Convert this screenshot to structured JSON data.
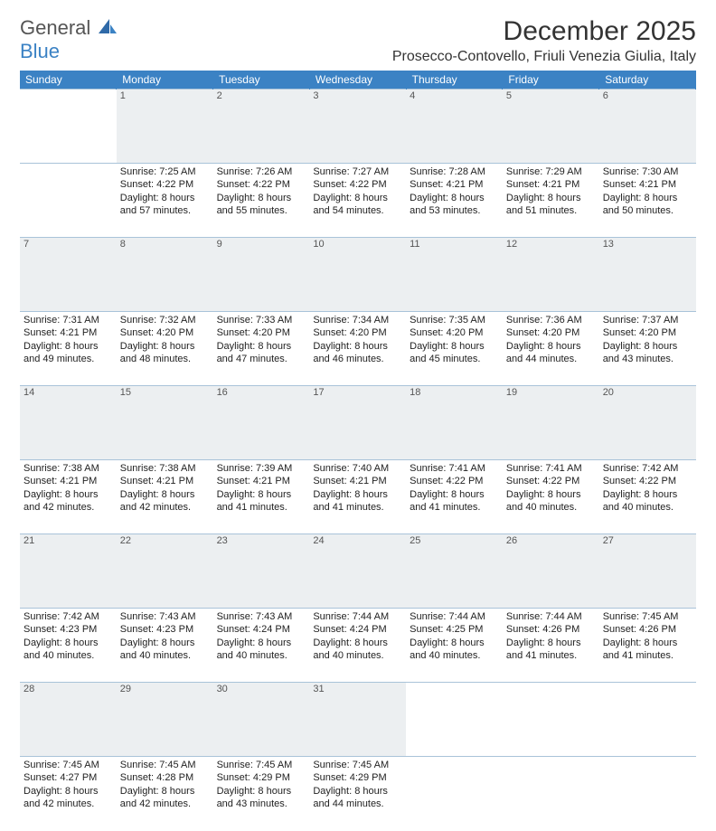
{
  "logo": {
    "line1": "General",
    "line2": "Blue"
  },
  "title": "December 2025",
  "location": "Prosecco-Contovello, Friuli Venezia Giulia, Italy",
  "colors": {
    "header_bg": "#3b82c4",
    "daynum_bg": "#eceff1",
    "rule": "#a9c3d9"
  },
  "weekdays": [
    "Sunday",
    "Monday",
    "Tuesday",
    "Wednesday",
    "Thursday",
    "Friday",
    "Saturday"
  ],
  "weeks": [
    {
      "nums": [
        "",
        "1",
        "2",
        "3",
        "4",
        "5",
        "6"
      ],
      "cells": [
        null,
        {
          "sunrise": "Sunrise: 7:25 AM",
          "sunset": "Sunset: 4:22 PM",
          "day1": "Daylight: 8 hours",
          "day2": "and 57 minutes."
        },
        {
          "sunrise": "Sunrise: 7:26 AM",
          "sunset": "Sunset: 4:22 PM",
          "day1": "Daylight: 8 hours",
          "day2": "and 55 minutes."
        },
        {
          "sunrise": "Sunrise: 7:27 AM",
          "sunset": "Sunset: 4:22 PM",
          "day1": "Daylight: 8 hours",
          "day2": "and 54 minutes."
        },
        {
          "sunrise": "Sunrise: 7:28 AM",
          "sunset": "Sunset: 4:21 PM",
          "day1": "Daylight: 8 hours",
          "day2": "and 53 minutes."
        },
        {
          "sunrise": "Sunrise: 7:29 AM",
          "sunset": "Sunset: 4:21 PM",
          "day1": "Daylight: 8 hours",
          "day2": "and 51 minutes."
        },
        {
          "sunrise": "Sunrise: 7:30 AM",
          "sunset": "Sunset: 4:21 PM",
          "day1": "Daylight: 8 hours",
          "day2": "and 50 minutes."
        }
      ]
    },
    {
      "nums": [
        "7",
        "8",
        "9",
        "10",
        "11",
        "12",
        "13"
      ],
      "cells": [
        {
          "sunrise": "Sunrise: 7:31 AM",
          "sunset": "Sunset: 4:21 PM",
          "day1": "Daylight: 8 hours",
          "day2": "and 49 minutes."
        },
        {
          "sunrise": "Sunrise: 7:32 AM",
          "sunset": "Sunset: 4:20 PM",
          "day1": "Daylight: 8 hours",
          "day2": "and 48 minutes."
        },
        {
          "sunrise": "Sunrise: 7:33 AM",
          "sunset": "Sunset: 4:20 PM",
          "day1": "Daylight: 8 hours",
          "day2": "and 47 minutes."
        },
        {
          "sunrise": "Sunrise: 7:34 AM",
          "sunset": "Sunset: 4:20 PM",
          "day1": "Daylight: 8 hours",
          "day2": "and 46 minutes."
        },
        {
          "sunrise": "Sunrise: 7:35 AM",
          "sunset": "Sunset: 4:20 PM",
          "day1": "Daylight: 8 hours",
          "day2": "and 45 minutes."
        },
        {
          "sunrise": "Sunrise: 7:36 AM",
          "sunset": "Sunset: 4:20 PM",
          "day1": "Daylight: 8 hours",
          "day2": "and 44 minutes."
        },
        {
          "sunrise": "Sunrise: 7:37 AM",
          "sunset": "Sunset: 4:20 PM",
          "day1": "Daylight: 8 hours",
          "day2": "and 43 minutes."
        }
      ]
    },
    {
      "nums": [
        "14",
        "15",
        "16",
        "17",
        "18",
        "19",
        "20"
      ],
      "cells": [
        {
          "sunrise": "Sunrise: 7:38 AM",
          "sunset": "Sunset: 4:21 PM",
          "day1": "Daylight: 8 hours",
          "day2": "and 42 minutes."
        },
        {
          "sunrise": "Sunrise: 7:38 AM",
          "sunset": "Sunset: 4:21 PM",
          "day1": "Daylight: 8 hours",
          "day2": "and 42 minutes."
        },
        {
          "sunrise": "Sunrise: 7:39 AM",
          "sunset": "Sunset: 4:21 PM",
          "day1": "Daylight: 8 hours",
          "day2": "and 41 minutes."
        },
        {
          "sunrise": "Sunrise: 7:40 AM",
          "sunset": "Sunset: 4:21 PM",
          "day1": "Daylight: 8 hours",
          "day2": "and 41 minutes."
        },
        {
          "sunrise": "Sunrise: 7:41 AM",
          "sunset": "Sunset: 4:22 PM",
          "day1": "Daylight: 8 hours",
          "day2": "and 41 minutes."
        },
        {
          "sunrise": "Sunrise: 7:41 AM",
          "sunset": "Sunset: 4:22 PM",
          "day1": "Daylight: 8 hours",
          "day2": "and 40 minutes."
        },
        {
          "sunrise": "Sunrise: 7:42 AM",
          "sunset": "Sunset: 4:22 PM",
          "day1": "Daylight: 8 hours",
          "day2": "and 40 minutes."
        }
      ]
    },
    {
      "nums": [
        "21",
        "22",
        "23",
        "24",
        "25",
        "26",
        "27"
      ],
      "cells": [
        {
          "sunrise": "Sunrise: 7:42 AM",
          "sunset": "Sunset: 4:23 PM",
          "day1": "Daylight: 8 hours",
          "day2": "and 40 minutes."
        },
        {
          "sunrise": "Sunrise: 7:43 AM",
          "sunset": "Sunset: 4:23 PM",
          "day1": "Daylight: 8 hours",
          "day2": "and 40 minutes."
        },
        {
          "sunrise": "Sunrise: 7:43 AM",
          "sunset": "Sunset: 4:24 PM",
          "day1": "Daylight: 8 hours",
          "day2": "and 40 minutes."
        },
        {
          "sunrise": "Sunrise: 7:44 AM",
          "sunset": "Sunset: 4:24 PM",
          "day1": "Daylight: 8 hours",
          "day2": "and 40 minutes."
        },
        {
          "sunrise": "Sunrise: 7:44 AM",
          "sunset": "Sunset: 4:25 PM",
          "day1": "Daylight: 8 hours",
          "day2": "and 40 minutes."
        },
        {
          "sunrise": "Sunrise: 7:44 AM",
          "sunset": "Sunset: 4:26 PM",
          "day1": "Daylight: 8 hours",
          "day2": "and 41 minutes."
        },
        {
          "sunrise": "Sunrise: 7:45 AM",
          "sunset": "Sunset: 4:26 PM",
          "day1": "Daylight: 8 hours",
          "day2": "and 41 minutes."
        }
      ]
    },
    {
      "nums": [
        "28",
        "29",
        "30",
        "31",
        "",
        "",
        ""
      ],
      "cells": [
        {
          "sunrise": "Sunrise: 7:45 AM",
          "sunset": "Sunset: 4:27 PM",
          "day1": "Daylight: 8 hours",
          "day2": "and 42 minutes."
        },
        {
          "sunrise": "Sunrise: 7:45 AM",
          "sunset": "Sunset: 4:28 PM",
          "day1": "Daylight: 8 hours",
          "day2": "and 42 minutes."
        },
        {
          "sunrise": "Sunrise: 7:45 AM",
          "sunset": "Sunset: 4:29 PM",
          "day1": "Daylight: 8 hours",
          "day2": "and 43 minutes."
        },
        {
          "sunrise": "Sunrise: 7:45 AM",
          "sunset": "Sunset: 4:29 PM",
          "day1": "Daylight: 8 hours",
          "day2": "and 44 minutes."
        },
        null,
        null,
        null
      ]
    }
  ]
}
